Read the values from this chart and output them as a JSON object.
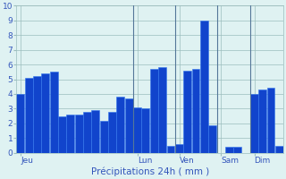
{
  "values": [
    4.0,
    5.1,
    5.2,
    5.4,
    5.5,
    2.5,
    2.6,
    2.6,
    2.8,
    2.9,
    2.2,
    2.8,
    3.8,
    3.7,
    3.1,
    3.0,
    5.7,
    5.8,
    0.5,
    0.6,
    5.6,
    5.7,
    9.0,
    1.9,
    0.0,
    0.4,
    0.4,
    0.0,
    4.0,
    4.3,
    4.4,
    0.5
  ],
  "bar_color": "#1144cc",
  "bar_edge_color": "#3377ee",
  "background_color": "#dff2f2",
  "grid_color": "#9bbdbd",
  "text_color": "#3355bb",
  "xlabel": "Précipitations 24h ( mm )",
  "ylim": [
    0,
    10
  ],
  "yticks": [
    0,
    1,
    2,
    3,
    4,
    5,
    6,
    7,
    8,
    9,
    10
  ],
  "day_labels": [
    "Jeu",
    "Lun",
    "Ven",
    "Sam",
    "Dim"
  ],
  "day_positions": [
    0.5,
    14.5,
    19.5,
    24.5,
    28.5
  ],
  "vline_positions": [
    14,
    19,
    24,
    28
  ],
  "vline_color": "#557799"
}
